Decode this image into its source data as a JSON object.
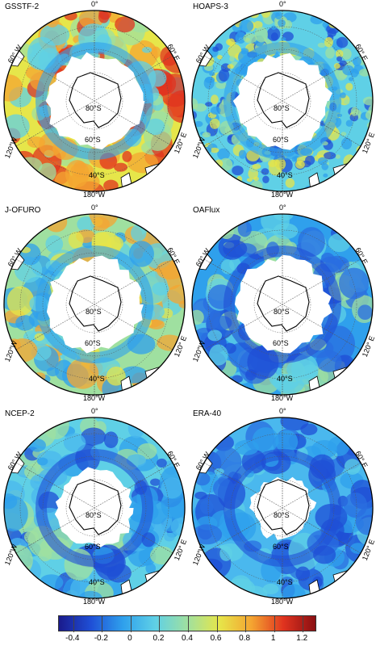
{
  "figure": {
    "panels": [
      {
        "id": "gsstf2",
        "title": "GSSTF-2",
        "palette": "warm-outer"
      },
      {
        "id": "hoaps3",
        "title": "HOAPS-3",
        "palette": "noisy"
      },
      {
        "id": "jofuro",
        "title": "J-OFURO",
        "palette": "warm-mid"
      },
      {
        "id": "oaflux",
        "title": "OAFlux",
        "palette": "cool"
      },
      {
        "id": "ncep2",
        "title": "NCEP-2",
        "palette": "cool-smooth"
      },
      {
        "id": "era40",
        "title": "ERA-40",
        "palette": "cool-ring"
      }
    ],
    "meridian_labels": {
      "top": "0°",
      "bottom": "180°W",
      "left_upper": "60° W",
      "left_lower": "120°W",
      "right_upper": "60° E",
      "right_lower": "120° E"
    },
    "latitude_labels": {
      "lat80": "80°S",
      "lat60": "60°S",
      "lat40": "40°S"
    },
    "colorbar": {
      "ticks": [
        "-0.4",
        "-0.2",
        "0",
        "0.2",
        "0.4",
        "0.6",
        "0.8",
        "1",
        "1.2"
      ],
      "range": [
        -0.5,
        1.3
      ],
      "colors": [
        "#1a1a8c",
        "#1f4fd6",
        "#2fa0ec",
        "#5fd0e6",
        "#9fe0a0",
        "#e6e64a",
        "#f4a531",
        "#e0331f",
        "#8a0f12"
      ]
    }
  }
}
